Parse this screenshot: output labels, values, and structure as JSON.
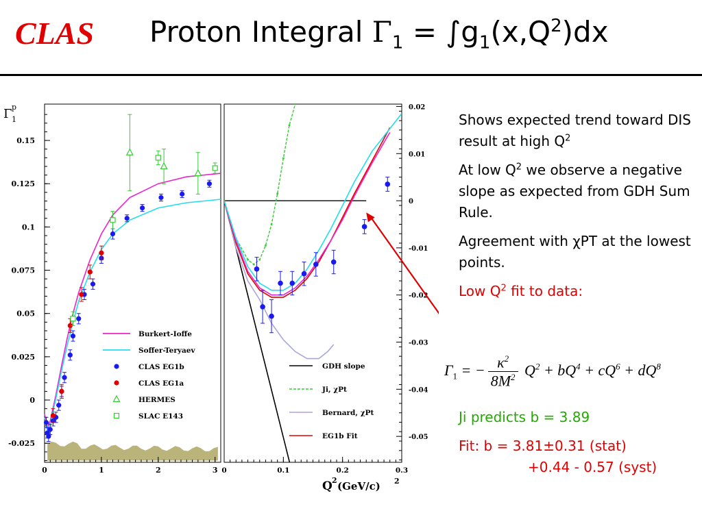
{
  "header": {
    "logo": "CLAS",
    "title_parts": {
      "a": "Proton Integral ",
      "gamma": "Γ",
      "sub1": "1",
      "eq": " = ∫g",
      "sub2": "1",
      "mid": "(x,Q",
      "sup": "2",
      "end": ")dx"
    }
  },
  "notes": {
    "n1": "Shows expected trend toward DIS result at high Q",
    "n1_sup": "2",
    "n2a": "At low Q",
    "n2_sup": "2",
    "n2b": " we observe a negative slope as expected from GDH Sum Rule.",
    "n3": "Agreement with χPT at the lowest points.",
    "n4a": "Low Q",
    "n4_sup": "2",
    "n4b": " fit to data:",
    "ji": "Ji predicts b = 3.89",
    "fit1": "Fit:  b = 3.81±0.31 (stat)",
    "fit2": "+0.44 - 0.57 (syst)"
  },
  "formula": {
    "lhs": "Γ",
    "lhs_sub": "1",
    "eq": " = −",
    "num": "κ",
    "num_sup": "2",
    "den": "8M",
    "den_sup": "2",
    "t1": " Q",
    "t1_sup": "2",
    "t2": " + bQ",
    "t2_sup": "4",
    "t3": " + cQ",
    "t3_sup": "6",
    "t4": " + dQ",
    "t4_sup": "8"
  },
  "colors": {
    "red": "#e00000",
    "blue": "#1a1aee",
    "magenta": "#ee22cc",
    "cyan": "#22ddee",
    "green": "#33cc33",
    "lavender": "#a9a6d8",
    "band": "#bab47a"
  },
  "chart_data": [
    {
      "type": "scatter",
      "ylabel_main": "Γ",
      "ylabel_sub": "1",
      "ylabel_sup": "p",
      "xlim": [
        0,
        3.1
      ],
      "ylim": [
        -0.036,
        0.171
      ],
      "x_ticks": [
        "0",
        "1",
        "2",
        "3"
      ],
      "y_ticks": [
        "-0.025",
        "0",
        "0.025",
        "0.05",
        "0.075",
        "0.1",
        "0.125",
        "0.15"
      ],
      "legend_position": "bottom-right",
      "series": [
        {
          "name": "Burkert-Ioffe",
          "kind": "line",
          "color": "#ee22cc",
          "points": [
            [
              0,
              -0.008
            ],
            [
              0.05,
              -0.016
            ],
            [
              0.1,
              -0.012
            ],
            [
              0.2,
              0.003
            ],
            [
              0.3,
              0.02
            ],
            [
              0.4,
              0.036
            ],
            [
              0.5,
              0.05
            ],
            [
              0.6,
              0.062
            ],
            [
              0.8,
              0.081
            ],
            [
              1.0,
              0.096
            ],
            [
              1.2,
              0.107
            ],
            [
              1.5,
              0.117
            ],
            [
              2.0,
              0.125
            ],
            [
              2.5,
              0.129
            ],
            [
              3.1,
              0.131
            ]
          ]
        },
        {
          "name": "Soffer-Teryaev",
          "kind": "line",
          "color": "#22ddee",
          "points": [
            [
              0,
              -0.01
            ],
            [
              0.05,
              -0.017
            ],
            [
              0.1,
              -0.014
            ],
            [
              0.2,
              0.001
            ],
            [
              0.3,
              0.017
            ],
            [
              0.4,
              0.032
            ],
            [
              0.5,
              0.045
            ],
            [
              0.6,
              0.057
            ],
            [
              0.8,
              0.074
            ],
            [
              1.0,
              0.087
            ],
            [
              1.2,
              0.096
            ],
            [
              1.5,
              0.104
            ],
            [
              2.0,
              0.111
            ],
            [
              2.5,
              0.114
            ],
            [
              3.1,
              0.116
            ]
          ]
        },
        {
          "name": "CLAS EG1b",
          "kind": "points",
          "marker": "circle",
          "color": "#1a1aee",
          "points": [
            [
              0.03,
              -0.013,
              0.003
            ],
            [
              0.05,
              -0.019,
              0.003
            ],
            [
              0.07,
              -0.021,
              0.003
            ],
            [
              0.1,
              -0.017,
              0.003
            ],
            [
              0.15,
              -0.012,
              0.003
            ],
            [
              0.2,
              -0.01,
              0.003
            ],
            [
              0.25,
              -0.003,
              0.003
            ],
            [
              0.3,
              0.005,
              0.003
            ],
            [
              0.35,
              0.013,
              0.003
            ],
            [
              0.45,
              0.026,
              0.003
            ],
            [
              0.5,
              0.037,
              0.003
            ],
            [
              0.6,
              0.047,
              0.003
            ],
            [
              0.7,
              0.061,
              0.003
            ],
            [
              0.85,
              0.067,
              0.003
            ],
            [
              1.0,
              0.082,
              0.003
            ],
            [
              1.2,
              0.096,
              0.003
            ],
            [
              1.45,
              0.105,
              0.002
            ],
            [
              1.72,
              0.111,
              0.002
            ],
            [
              2.05,
              0.117,
              0.002
            ],
            [
              2.42,
              0.119,
              0.002
            ],
            [
              2.9,
              0.125,
              0.002
            ]
          ]
        },
        {
          "name": "CLAS EG1a",
          "kind": "points",
          "marker": "circle",
          "color": "#e00000",
          "points": [
            [
              0.15,
              -0.009,
              0.004
            ],
            [
              0.3,
              0.005,
              0.004
            ],
            [
              0.45,
              0.043,
              0.004
            ],
            [
              0.65,
              0.061,
              0.004
            ],
            [
              0.8,
              0.074,
              0.004
            ],
            [
              1.0,
              0.085,
              0.004
            ]
          ]
        },
        {
          "name": "HERMES",
          "kind": "points",
          "marker": "triangle",
          "color": "#33cc33",
          "points": [
            [
              1.5,
              0.143,
              0.022
            ],
            [
              2.1,
              0.135,
              0.01
            ],
            [
              2.7,
              0.131,
              0.012
            ]
          ]
        },
        {
          "name": "SLAC E143",
          "kind": "points",
          "marker": "square",
          "color": "#33cc33",
          "points": [
            [
              0.5,
              0.047,
              0.004
            ],
            [
              1.2,
              0.104,
              0.005
            ],
            [
              2.0,
              0.14,
              0.004
            ],
            [
              3.0,
              0.134,
              0.003
            ]
          ]
        }
      ]
    },
    {
      "type": "scatter",
      "xlabel": "Q",
      "xlabel_sup": "2",
      "xlabel_unit": "(GeV/c)",
      "xlabel_unit_sup": "2",
      "xlim": [
        0,
        0.3
      ],
      "ylim": [
        -0.0555,
        0.0205
      ],
      "x_ticks": [
        "0",
        "0.1",
        "0.2",
        "0.3"
      ],
      "y_ticks": [
        "0.02",
        "0.01",
        "0",
        "-0.01",
        "-0.02",
        "-0.03",
        "-0.04",
        "-0.05"
      ],
      "legend_position": "bottom-right",
      "series": [
        {
          "name": "GDH slope",
          "kind": "line",
          "color": "#000000",
          "points": [
            [
              0,
              0
            ],
            [
              0.1105,
              -0.0555
            ]
          ]
        },
        {
          "name": "Ji, χPt",
          "kind": "line",
          "color": "#33cc33",
          "dashed": true,
          "points": [
            [
              0,
              0
            ],
            [
              0.02,
              -0.008
            ],
            [
              0.04,
              -0.0125
            ],
            [
              0.05,
              -0.0135
            ],
            [
              0.06,
              -0.0125
            ],
            [
              0.07,
              -0.0095
            ],
            [
              0.08,
              -0.005
            ],
            [
              0.09,
              0.0015
            ],
            [
              0.1,
              0.009
            ],
            [
              0.11,
              0.016
            ],
            [
              0.12,
              0.0205
            ]
          ]
        },
        {
          "name": "Bernard, χPt",
          "kind": "line",
          "color": "#a9a6d8",
          "points": [
            [
              0,
              0
            ],
            [
              0.02,
              -0.01
            ],
            [
              0.04,
              -0.017
            ],
            [
              0.06,
              -0.021
            ],
            [
              0.08,
              -0.026
            ],
            [
              0.1,
              -0.0295
            ],
            [
              0.12,
              -0.032
            ],
            [
              0.14,
              -0.0335
            ],
            [
              0.16,
              -0.0335
            ],
            [
              0.175,
              -0.032
            ],
            [
              0.185,
              -0.0305
            ]
          ]
        },
        {
          "name": "EG1b Fit",
          "kind": "line",
          "color": "#e00000",
          "points": [
            [
              0,
              0
            ],
            [
              0.02,
              -0.009
            ],
            [
              0.04,
              -0.0155
            ],
            [
              0.06,
              -0.019
            ],
            [
              0.08,
              -0.0205
            ],
            [
              0.1,
              -0.0205
            ],
            [
              0.12,
              -0.019
            ],
            [
              0.14,
              -0.0165
            ],
            [
              0.16,
              -0.013
            ],
            [
              0.18,
              -0.0085
            ],
            [
              0.2,
              -0.0035
            ],
            [
              0.22,
              0.0015
            ],
            [
              0.25,
              0.0085
            ],
            [
              0.28,
              0.0155
            ]
          ]
        },
        {
          "name": "Burkert-Ioffe",
          "kind": "line",
          "color": "#ee22cc",
          "points": [
            [
              0,
              0
            ],
            [
              0.02,
              -0.0085
            ],
            [
              0.04,
              -0.015
            ],
            [
              0.06,
              -0.0185
            ],
            [
              0.08,
              -0.02
            ],
            [
              0.1,
              -0.02
            ],
            [
              0.12,
              -0.0185
            ],
            [
              0.14,
              -0.016
            ],
            [
              0.16,
              -0.0125
            ],
            [
              0.18,
              -0.0085
            ],
            [
              0.2,
              -0.004
            ],
            [
              0.22,
              0.001
            ],
            [
              0.25,
              0.008
            ],
            [
              0.28,
              0.0145
            ]
          ]
        },
        {
          "name": "Soffer-Teryaev",
          "kind": "line",
          "color": "#22ddee",
          "points": [
            [
              0,
              0
            ],
            [
              0.02,
              -0.008
            ],
            [
              0.04,
              -0.014
            ],
            [
              0.06,
              -0.0175
            ],
            [
              0.08,
              -0.019
            ],
            [
              0.1,
              -0.019
            ],
            [
              0.12,
              -0.0175
            ],
            [
              0.14,
              -0.0145
            ],
            [
              0.16,
              -0.0105
            ],
            [
              0.18,
              -0.006
            ],
            [
              0.2,
              -0.001
            ],
            [
              0.22,
              0.004
            ],
            [
              0.25,
              0.0105
            ],
            [
              0.3,
              0.0185
            ]
          ]
        },
        {
          "name": "CLAS EG1b",
          "kind": "points",
          "marker": "circle",
          "color": "#1a1aee",
          "points": [
            [
              0.055,
              -0.0145,
              0.0025
            ],
            [
              0.065,
              -0.0225,
              0.0035
            ],
            [
              0.08,
              -0.0245,
              0.0035
            ],
            [
              0.095,
              -0.0175,
              0.0025
            ],
            [
              0.115,
              -0.0175,
              0.0025
            ],
            [
              0.135,
              -0.0155,
              0.0025
            ],
            [
              0.155,
              -0.0135,
              0.0025
            ],
            [
              0.185,
              -0.013,
              0.0025
            ],
            [
              0.237,
              -0.0055,
              0.0015
            ],
            [
              0.276,
              0.0035,
              0.0015
            ]
          ]
        }
      ]
    }
  ]
}
